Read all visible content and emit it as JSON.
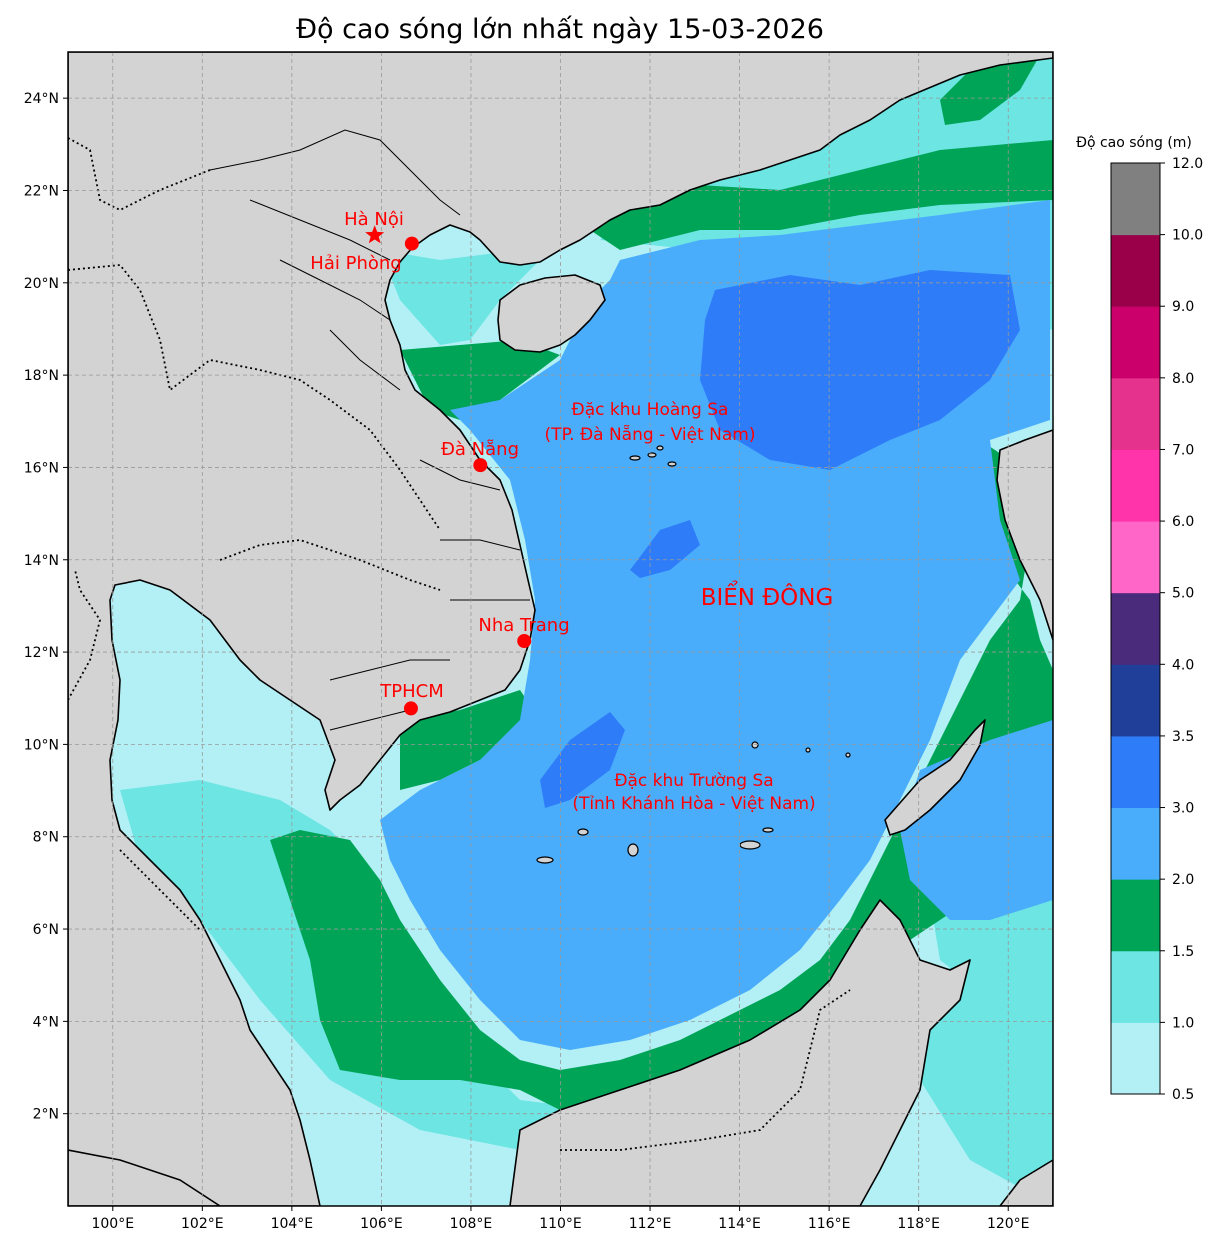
{
  "title": "Độ cao sóng lớn nhất ngày 15-03-2026",
  "colorbar": {
    "title": "Độ cao sóng (m)",
    "bins": [
      {
        "from": 0.5,
        "to": 1.0,
        "color": "#b3f0f5"
      },
      {
        "from": 1.0,
        "to": 1.5,
        "color": "#6ce5e3"
      },
      {
        "from": 1.5,
        "to": 2.0,
        "color": "#00a457"
      },
      {
        "from": 2.0,
        "to": 3.0,
        "color": "#4aadfc"
      },
      {
        "from": 3.0,
        "to": 3.5,
        "color": "#2f7cf8"
      },
      {
        "from": 3.5,
        "to": 4.0,
        "color": "#1f3f99"
      },
      {
        "from": 4.0,
        "to": 5.0,
        "color": "#4a2a7a"
      },
      {
        "from": 5.0,
        "to": 6.0,
        "color": "#ff66c8"
      },
      {
        "from": 6.0,
        "to": 7.0,
        "color": "#ff33aa"
      },
      {
        "from": 7.0,
        "to": 8.0,
        "color": "#e5328c"
      },
      {
        "from": 8.0,
        "to": 9.0,
        "color": "#cc006b"
      },
      {
        "from": 9.0,
        "to": 10.0,
        "color": "#990049"
      },
      {
        "from": 10.0,
        "to": 12.0,
        "color": "#808080"
      }
    ],
    "tick_labels": [
      "0.5",
      "1.0",
      "1.5",
      "2.0",
      "3.0",
      "3.5",
      "4.0",
      "5.0",
      "6.0",
      "7.0",
      "8.0",
      "9.0",
      "10.0",
      "12.0"
    ]
  },
  "axes": {
    "lon_range": [
      99,
      121
    ],
    "lat_range": [
      0,
      25
    ],
    "lon_ticks": [
      {
        "value": 100,
        "label": "100°E"
      },
      {
        "value": 102,
        "label": "102°E"
      },
      {
        "value": 104,
        "label": "104°E"
      },
      {
        "value": 106,
        "label": "106°E"
      },
      {
        "value": 108,
        "label": "108°E"
      },
      {
        "value": 110,
        "label": "110°E"
      },
      {
        "value": 112,
        "label": "112°E"
      },
      {
        "value": 114,
        "label": "114°E"
      },
      {
        "value": 116,
        "label": "116°E"
      },
      {
        "value": 118,
        "label": "118°E"
      },
      {
        "value": 120,
        "label": "120°E"
      }
    ],
    "lat_ticks": [
      {
        "value": 2,
        "label": "2°N"
      },
      {
        "value": 4,
        "label": "4°N"
      },
      {
        "value": 6,
        "label": "6°N"
      },
      {
        "value": 8,
        "label": "8°N"
      },
      {
        "value": 10,
        "label": "10°N"
      },
      {
        "value": 12,
        "label": "12°N"
      },
      {
        "value": 14,
        "label": "14°N"
      },
      {
        "value": 16,
        "label": "16°N"
      },
      {
        "value": 18,
        "label": "18°N"
      },
      {
        "value": 20,
        "label": "20°N"
      },
      {
        "value": 22,
        "label": "22°N"
      },
      {
        "value": 24,
        "label": "24°N"
      }
    ],
    "grid": true
  },
  "cities": [
    {
      "name": "Hà Nội",
      "lon": 105.85,
      "lat": 21.03,
      "marker": "star"
    },
    {
      "name": "Hải Phòng",
      "lon": 106.68,
      "lat": 20.85,
      "marker": "dot"
    },
    {
      "name": "Đà Nẵng",
      "lon": 108.21,
      "lat": 16.05,
      "marker": "dot"
    },
    {
      "name": "Nha Trang",
      "lon": 109.19,
      "lat": 12.24,
      "marker": "dot"
    },
    {
      "name": "TPHCM",
      "lon": 106.66,
      "lat": 10.78,
      "marker": "dot"
    }
  ],
  "annotations": {
    "hoang_sa_line1": "Đặc khu Hoàng Sa",
    "hoang_sa_line2": "(TP. Đà Nẵng - Việt Nam)",
    "truong_sa_line1": "Đặc khu Trường Sa",
    "truong_sa_line2": "(Tỉnh Khánh Hòa - Việt Nam)",
    "sea_name": "BIỂN ĐÔNG"
  },
  "colors": {
    "land": "#d3d3d3",
    "marker": "#ff0000"
  }
}
